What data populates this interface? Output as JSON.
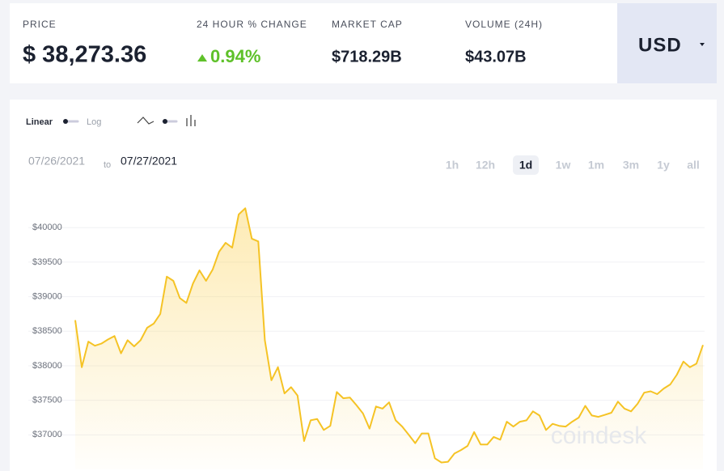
{
  "header": {
    "price_label": "PRICE",
    "price": "$ 38,273.36",
    "change_label": "24 HOUR % CHANGE",
    "change": "0.94%",
    "market_cap_label": "MARKET CAP",
    "market_cap": "$718.29B",
    "volume_label": "VOLUME (24H)",
    "volume": "$43.07B",
    "currency": "USD"
  },
  "controls": {
    "linear": "Linear",
    "log": "Log",
    "date_from": "07/26/2021",
    "date_to_word": "to",
    "date_to": "07/27/2021",
    "ranges": [
      "1h",
      "12h",
      "1d",
      "1w",
      "1m",
      "3m",
      "1y",
      "all"
    ],
    "active_range": "1d"
  },
  "watermark": "coindesk",
  "chart_data": {
    "type": "line",
    "color": "#f5c325",
    "grid": true,
    "ylim": [
      36500,
      40600
    ],
    "yticks": [
      {
        "value": 37000,
        "label": "$37000"
      },
      {
        "value": 37500,
        "label": "$37500"
      },
      {
        "value": 38000,
        "label": "$38000"
      },
      {
        "value": 38500,
        "label": "$38500"
      },
      {
        "value": 39000,
        "label": "$39000"
      },
      {
        "value": 39500,
        "label": "$39500"
      },
      {
        "value": 40000,
        "label": "$40000"
      }
    ],
    "values": [
      38660,
      37980,
      38350,
      38290,
      38320,
      38380,
      38430,
      38180,
      38370,
      38280,
      38370,
      38550,
      38610,
      38750,
      39290,
      39230,
      38980,
      38910,
      39190,
      39380,
      39230,
      39390,
      39650,
      39780,
      39710,
      40190,
      40280,
      39840,
      39800,
      38370,
      37790,
      37980,
      37600,
      37690,
      37570,
      36910,
      37210,
      37230,
      37070,
      37130,
      37620,
      37530,
      37540,
      37430,
      37310,
      37090,
      37410,
      37380,
      37470,
      37210,
      37120,
      37000,
      36880,
      37020,
      37020,
      36660,
      36600,
      36610,
      36730,
      36780,
      36840,
      37040,
      36860,
      36860,
      36970,
      36930,
      37190,
      37120,
      37190,
      37210,
      37340,
      37280,
      37070,
      37160,
      37130,
      37120,
      37190,
      37250,
      37420,
      37280,
      37260,
      37290,
      37320,
      37480,
      37380,
      37340,
      37450,
      37610,
      37630,
      37590,
      37670,
      37730,
      37870,
      38060,
      37980,
      38030,
      38300
    ]
  }
}
